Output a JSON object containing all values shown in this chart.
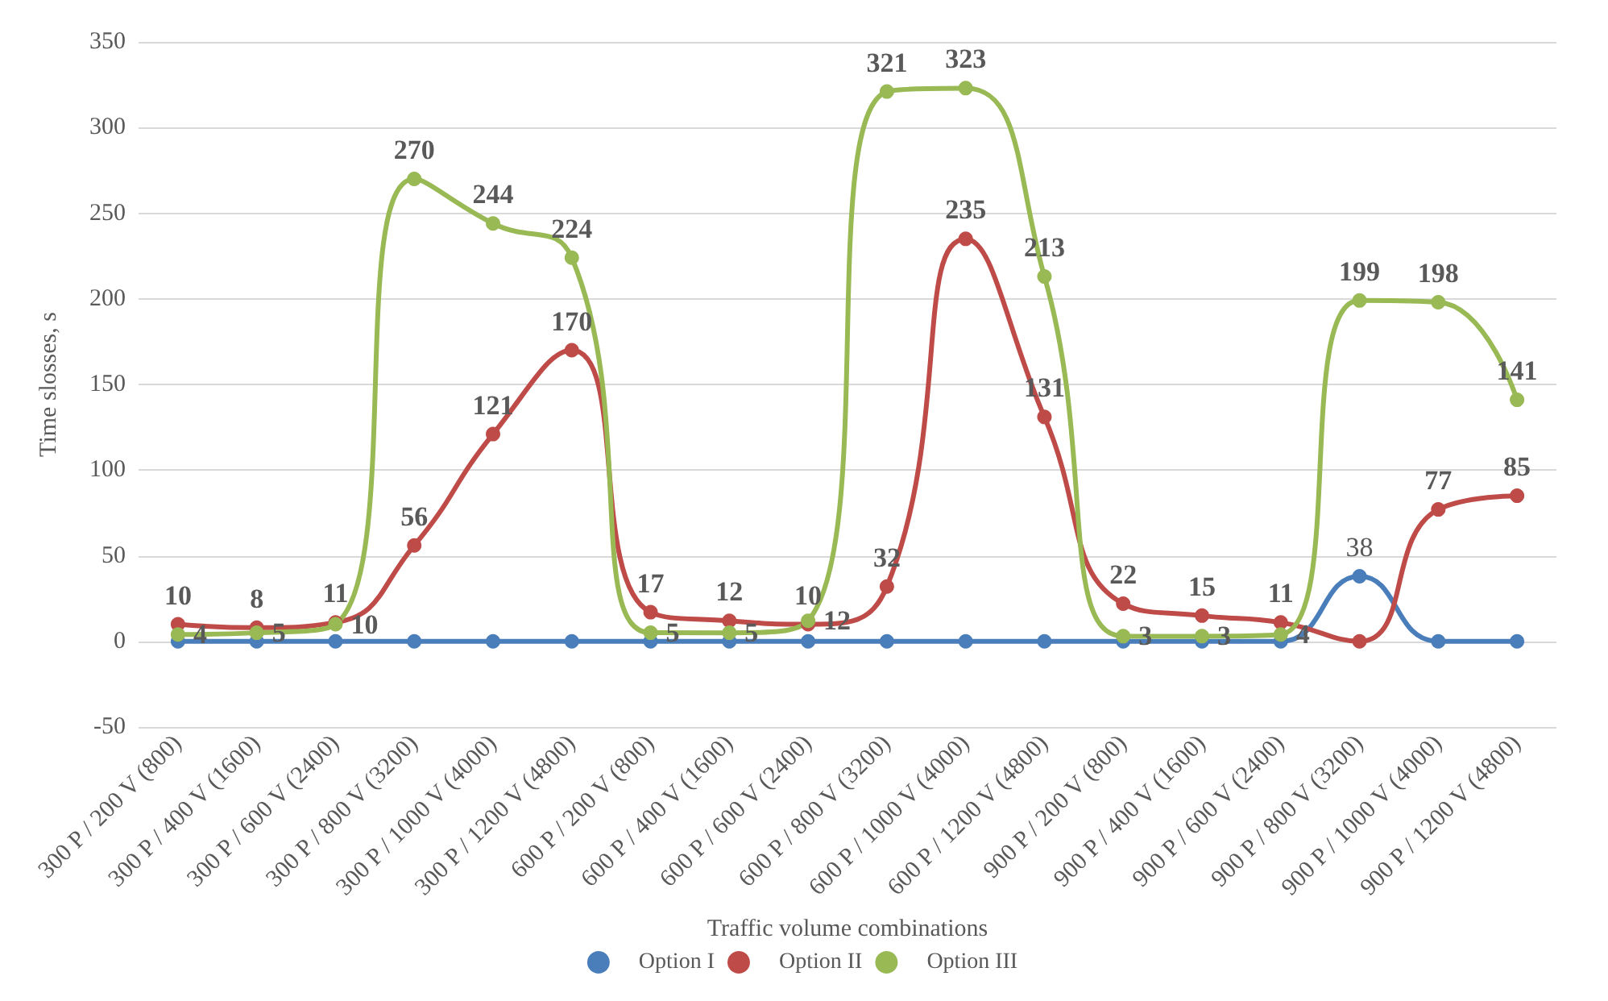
{
  "chart_data": {
    "type": "line",
    "xlabel": "Traffic volume combinations",
    "ylabel": "Time slosses, s",
    "categories": [
      "300 P / 200 V (800)",
      "300 P / 400 V (1600)",
      "300 P / 600 V (2400)",
      "300 P / 800 V (3200)",
      "300 P / 1000 V (4000)",
      "300 P / 1200 V (4800)",
      "600 P / 200 V (800)",
      "600 P / 400 V (1600)",
      "600 P / 600 V (2400)",
      "600 P / 800 V (3200)",
      "600 P / 1000 V (4000)",
      "600 P / 1200 V (4800)",
      "900 P / 200 V (800)",
      "900 P / 400 V (1600)",
      "900 P / 600 V (2400)",
      "900 P / 800 V (3200)",
      "900 P / 1000 V (4000)",
      "900 P / 1200 V (4800)"
    ],
    "series": [
      {
        "name": "Option I",
        "color": "#4a7ebb",
        "values": [
          0,
          0,
          0,
          0,
          0,
          0,
          0,
          0,
          0,
          0,
          0,
          0,
          0,
          0,
          0,
          38,
          0,
          0
        ],
        "value_labels": [
          null,
          null,
          null,
          null,
          null,
          null,
          null,
          null,
          null,
          null,
          null,
          null,
          null,
          null,
          null,
          "38",
          null,
          null
        ]
      },
      {
        "name": "Option II",
        "color": "#be4b48",
        "values": [
          10,
          8,
          11,
          56,
          121,
          170,
          17,
          12,
          10,
          32,
          235,
          131,
          22,
          15,
          11,
          0,
          77,
          85
        ],
        "value_labels": [
          "10",
          "8",
          "11",
          "56",
          "121",
          "170",
          "17",
          "12",
          "10",
          "32",
          "235",
          "131",
          "22",
          "15",
          "11",
          null,
          "77",
          "85"
        ]
      },
      {
        "name": "Option III",
        "color": "#98b954",
        "values": [
          4,
          5,
          10,
          270,
          244,
          224,
          5,
          5,
          12,
          321,
          323,
          213,
          3,
          3,
          4,
          199,
          198,
          141
        ],
        "value_labels": [
          "4",
          "5",
          "10",
          "270",
          "244",
          "224",
          "5",
          "5",
          "12",
          "321",
          "323",
          "213",
          "3",
          "3",
          "4",
          "199",
          "198",
          "141"
        ]
      }
    ],
    "ylim": [
      -50,
      350
    ],
    "yticks": [
      -50,
      0,
      50,
      100,
      150,
      200,
      250,
      300,
      350
    ],
    "grid": "y",
    "legend": "bottom",
    "marker": "circle",
    "line_style": "solid"
  }
}
